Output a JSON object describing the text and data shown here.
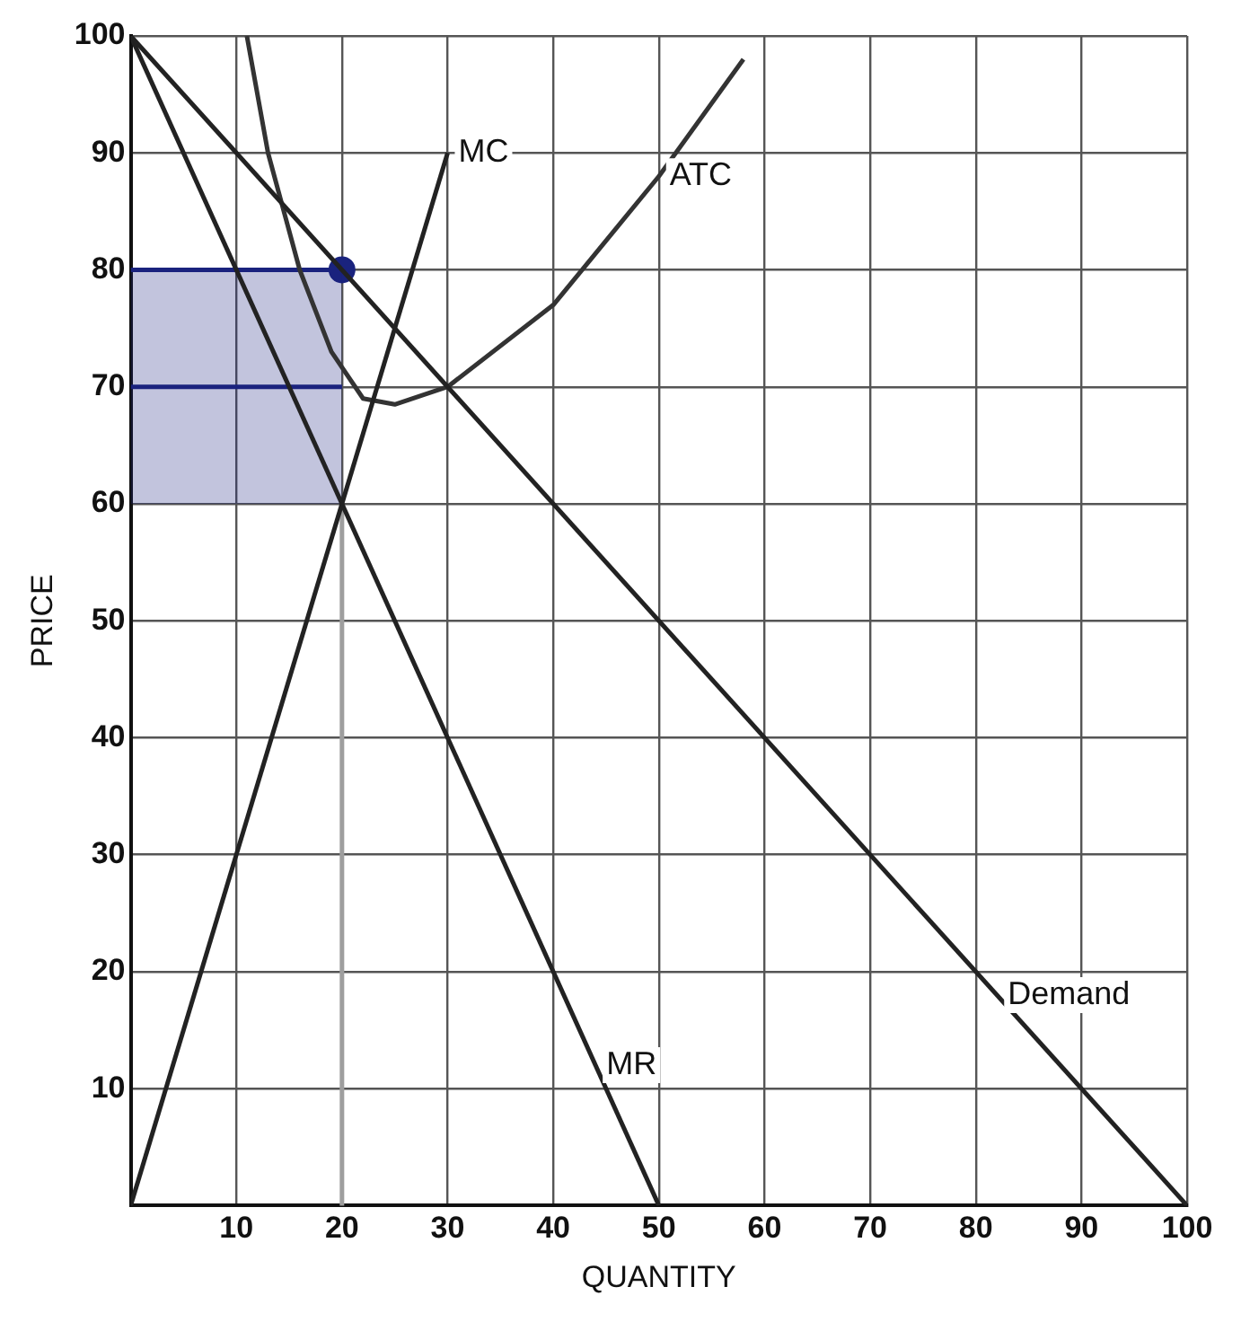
{
  "chart_data": {
    "type": "line",
    "xlabel": "QUANTITY",
    "ylabel": "PRICE",
    "xlim": [
      0,
      100
    ],
    "ylim": [
      0,
      100
    ],
    "xticks": [
      10,
      20,
      30,
      40,
      50,
      60,
      70,
      80,
      90,
      100
    ],
    "yticks": [
      10,
      20,
      30,
      40,
      50,
      60,
      70,
      80,
      90,
      100
    ],
    "grid": true,
    "marker": "none",
    "series": [
      {
        "color": "#222222",
        "x": [
          0,
          100
        ],
        "values": [
          100,
          0
        ]
      },
      {
        "color": "#222222",
        "x": [
          0,
          50
        ],
        "values": [
          100,
          0
        ]
      },
      {
        "color": "#222222",
        "x": [
          0,
          30
        ],
        "values": [
          0,
          90
        ]
      },
      {
        "color": "#333333",
        "x": [
          11,
          13,
          16,
          19,
          22,
          25,
          30,
          40,
          50,
          58
        ],
        "values": [
          100,
          90,
          80,
          73,
          69,
          68.5,
          70,
          77,
          88,
          98
        ]
      },
      {
        "color": "#1a237e",
        "x": [
          0,
          20
        ],
        "values": [
          80,
          80
        ],
        "lower": [
          60,
          60
        ],
        "upper": [
          80,
          80
        ]
      },
      {
        "color": "#1a237e",
        "x": [
          0,
          20
        ],
        "values": [
          70,
          70
        ]
      },
      {
        "color": "#9e9e9e",
        "x": [
          20,
          20
        ],
        "values": [
          60,
          0
        ]
      },
      {
        "type": "scatter",
        "color": "#1a237e",
        "marker": "circle",
        "x": [
          20
        ],
        "values": [
          80
        ]
      }
    ],
    "annotations": [
      {
        "text": "MC",
        "x": 30,
        "y": 90
      },
      {
        "text": "ATC",
        "x": 50,
        "y": 88
      },
      {
        "text": "Demand",
        "x": 82,
        "y": 18
      },
      {
        "text": "MR",
        "x": 44,
        "y": 12
      }
    ]
  }
}
